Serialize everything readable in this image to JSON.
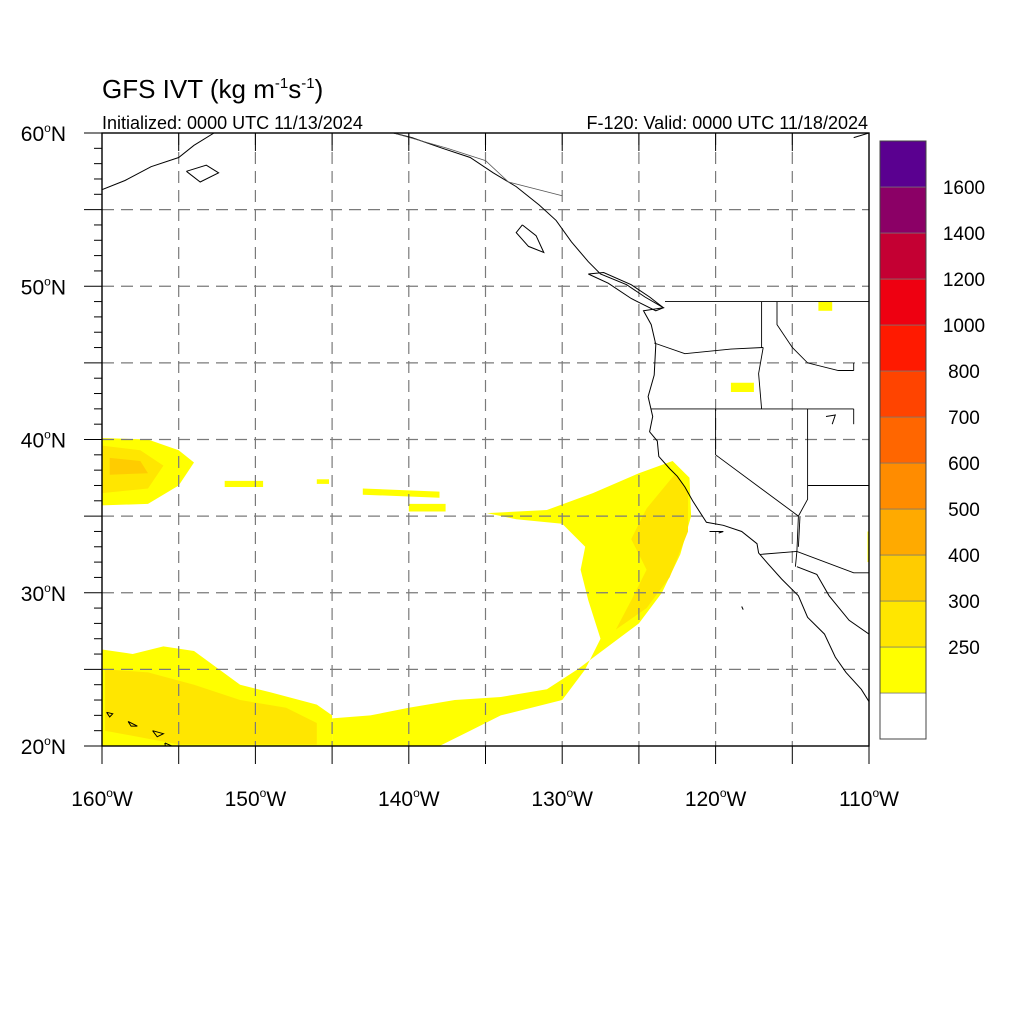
{
  "title_main": "GFS IVT (kg m",
  "title_sup1": "-1",
  "title_s": "s",
  "title_sup2": "-1",
  "title_close": ")",
  "initialized": "Initialized: 0000 UTC 11/13/2024",
  "valid": "F-120: Valid: 0000 UTC 11/18/2024",
  "lat_labels": [
    {
      "value": 60,
      "label": "60",
      "suffix": "N"
    },
    {
      "value": 50,
      "label": "50",
      "suffix": "N"
    },
    {
      "value": 40,
      "label": "40",
      "suffix": "N"
    },
    {
      "value": 30,
      "label": "30",
      "suffix": "N"
    },
    {
      "value": 20,
      "label": "20",
      "suffix": "N"
    }
  ],
  "lon_labels": [
    {
      "value": -160,
      "label": "160",
      "suffix": "W"
    },
    {
      "value": -150,
      "label": "150",
      "suffix": "W"
    },
    {
      "value": -140,
      "label": "140",
      "suffix": "W"
    },
    {
      "value": -130,
      "label": "130",
      "suffix": "W"
    },
    {
      "value": -120,
      "label": "120",
      "suffix": "W"
    },
    {
      "value": -110,
      "label": "110",
      "suffix": "W"
    }
  ],
  "degree_symbol": "o",
  "map_extent": {
    "lon_min": -160,
    "lon_max": -110,
    "lat_min": 20,
    "lat_max": 60
  },
  "colorbar": {
    "levels": [
      {
        "label": "",
        "color": "#ffffff"
      },
      {
        "label": "250",
        "color": "#ffff00"
      },
      {
        "label": "300",
        "color": "#ffe600"
      },
      {
        "label": "400",
        "color": "#ffcc00"
      },
      {
        "label": "500",
        "color": "#ffaa00"
      },
      {
        "label": "600",
        "color": "#ff8c00"
      },
      {
        "label": "700",
        "color": "#ff6600"
      },
      {
        "label": "800",
        "color": "#ff4400"
      },
      {
        "label": "1000",
        "color": "#ff1a00"
      },
      {
        "label": "1200",
        "color": "#ee0011"
      },
      {
        "label": "1400",
        "color": "#c40033"
      },
      {
        "label": "1600",
        "color": "#8b0066"
      },
      {
        "label": "",
        "color": "#5a0090"
      }
    ]
  },
  "ivt_regions": [
    {
      "name": "atmospheric-river-main",
      "color": "#ffff00",
      "poly": [
        [
          -134.9,
          35.2
        ],
        [
          -131,
          35.4
        ],
        [
          -128,
          36.5
        ],
        [
          -125,
          37.8
        ],
        [
          -122.8,
          38.6
        ],
        [
          -121.7,
          37.5
        ],
        [
          -121.6,
          35
        ],
        [
          -122.3,
          32.5
        ],
        [
          -123.5,
          30
        ],
        [
          -125,
          28
        ],
        [
          -127,
          26.5
        ],
        [
          -129,
          25
        ],
        [
          -131,
          23.7
        ],
        [
          -134,
          23.2
        ],
        [
          -137,
          23
        ],
        [
          -140,
          22.5
        ],
        [
          -142.5,
          22
        ],
        [
          -145,
          21.8
        ],
        [
          -145,
          20
        ],
        [
          -138,
          20
        ],
        [
          -136,
          21
        ],
        [
          -134,
          22
        ],
        [
          -132,
          22.5
        ],
        [
          -130,
          23
        ],
        [
          -128.5,
          25
        ],
        [
          -127.5,
          27
        ],
        [
          -128.3,
          29.5
        ],
        [
          -128.8,
          31.5
        ],
        [
          -128.5,
          33
        ],
        [
          -130,
          34.5
        ],
        [
          -133,
          34.8
        ]
      ]
    },
    {
      "name": "atmospheric-river-core",
      "color": "#ffe600",
      "poly": [
        [
          -124.5,
          35.5
        ],
        [
          -122.6,
          37.8
        ],
        [
          -121.8,
          36.5
        ],
        [
          -121.8,
          34
        ],
        [
          -123,
          31
        ],
        [
          -124.5,
          29
        ],
        [
          -126.5,
          27.6
        ],
        [
          -125.5,
          29.5
        ],
        [
          -124.5,
          31.5
        ],
        [
          -125.5,
          33.5
        ]
      ]
    },
    {
      "name": "north-pacific-blob",
      "color": "#ffff00",
      "poly": [
        [
          -160,
          40.1
        ],
        [
          -157,
          40
        ],
        [
          -155,
          39.3
        ],
        [
          -154,
          38.5
        ],
        [
          -155,
          37
        ],
        [
          -157,
          35.8
        ],
        [
          -160,
          35.7
        ]
      ]
    },
    {
      "name": "north-pacific-blob-core",
      "color": "#ffe600",
      "poly": [
        [
          -160,
          39.6
        ],
        [
          -157.5,
          39.3
        ],
        [
          -156,
          38.3
        ],
        [
          -157,
          36.8
        ],
        [
          -160,
          36.5
        ]
      ]
    },
    {
      "name": "north-pacific-blob-inner",
      "color": "#ffcc00",
      "poly": [
        [
          -159.5,
          38.8
        ],
        [
          -157.5,
          38.6
        ],
        [
          -157,
          37.8
        ],
        [
          -159.5,
          37.7
        ]
      ]
    },
    {
      "name": "hawaii-region",
      "color": "#ffff00",
      "poly": [
        [
          -160,
          26.3
        ],
        [
          -158,
          26
        ],
        [
          -156,
          26.5
        ],
        [
          -154,
          26.2
        ],
        [
          -151,
          24
        ],
        [
          -149,
          23.5
        ],
        [
          -146,
          22.7
        ],
        [
          -145,
          22
        ],
        [
          -145,
          20
        ],
        [
          -160,
          20
        ]
      ]
    },
    {
      "name": "hawaii-region-core",
      "color": "#ffe600",
      "poly": [
        [
          -159.8,
          25
        ],
        [
          -157,
          24.8
        ],
        [
          -154,
          24
        ],
        [
          -151,
          23
        ],
        [
          -148,
          22.5
        ],
        [
          -146,
          21.5
        ],
        [
          -146,
          20.1
        ],
        [
          -155,
          20.1
        ],
        [
          -159.8,
          21
        ]
      ]
    },
    {
      "name": "streak-1",
      "color": "#ffff00",
      "poly": [
        [
          -152,
          37.3
        ],
        [
          -149.5,
          37.3
        ],
        [
          -149.5,
          36.9
        ],
        [
          -152,
          36.9
        ]
      ]
    },
    {
      "name": "streak-2",
      "color": "#ffff00",
      "poly": [
        [
          -146,
          37.4
        ],
        [
          -145.2,
          37.4
        ],
        [
          -145.2,
          37.1
        ],
        [
          -146,
          37.1
        ]
      ]
    },
    {
      "name": "streak-3",
      "color": "#ffff00",
      "poly": [
        [
          -143,
          36.8
        ],
        [
          -138,
          36.6
        ],
        [
          -138,
          36.2
        ],
        [
          -143,
          36.4
        ]
      ]
    },
    {
      "name": "streak-4",
      "color": "#ffff00",
      "poly": [
        [
          -140,
          35.8
        ],
        [
          -137.6,
          35.8
        ],
        [
          -137.6,
          35.3
        ],
        [
          -140,
          35.3
        ]
      ]
    },
    {
      "name": "inland-idaho",
      "color": "#ffff00",
      "poly": [
        [
          -113.3,
          49
        ],
        [
          -112.4,
          49
        ],
        [
          -112.4,
          48.4
        ],
        [
          -113.3,
          48.4
        ]
      ]
    },
    {
      "name": "inland-oregon",
      "color": "#ffff00",
      "poly": [
        [
          -119,
          43.7
        ],
        [
          -117.5,
          43.7
        ],
        [
          -117.5,
          43.1
        ],
        [
          -119,
          43.1
        ]
      ]
    },
    {
      "name": "inland-mexico",
      "color": "#ffff00",
      "poly": [
        [
          -110.1,
          34
        ],
        [
          -110,
          34
        ],
        [
          -110,
          32
        ],
        [
          -110.1,
          32
        ]
      ]
    }
  ],
  "coastlines": [
    {
      "name": "na-west-coast",
      "pts": [
        [
          -110,
          22.9
        ],
        [
          -110.5,
          23.7
        ],
        [
          -111.5,
          24.8
        ],
        [
          -112.2,
          25.8
        ],
        [
          -112.9,
          27.3
        ],
        [
          -114,
          28.4
        ],
        [
          -114.6,
          29.8
        ],
        [
          -115.7,
          30.9
        ],
        [
          -116.6,
          31.9
        ],
        [
          -117.2,
          32.6
        ],
        [
          -117.3,
          33.2
        ],
        [
          -118.3,
          34
        ],
        [
          -119.5,
          34.4
        ],
        [
          -120.6,
          34.6
        ],
        [
          -121.5,
          36
        ],
        [
          -122,
          36.9
        ],
        [
          -122.5,
          37.6
        ],
        [
          -123,
          38.1
        ],
        [
          -123.7,
          38.9
        ],
        [
          -123.8,
          39.9
        ],
        [
          -124.3,
          40.5
        ],
        [
          -124.1,
          41.5
        ],
        [
          -124.4,
          42.8
        ],
        [
          -124,
          44.2
        ],
        [
          -123.9,
          46.2
        ],
        [
          -124.2,
          47.5
        ],
        [
          -124.7,
          48.4
        ],
        [
          -123.4,
          48.6
        ],
        [
          -124.6,
          49.3
        ],
        [
          -125.8,
          50.1
        ],
        [
          -127.5,
          50.8
        ],
        [
          -128.3,
          51.6
        ],
        [
          -129.4,
          52.9
        ],
        [
          -130.4,
          54.3
        ],
        [
          -131.5,
          55.3
        ],
        [
          -133,
          56.5
        ],
        [
          -134.5,
          57.4
        ],
        [
          -136,
          58.4
        ],
        [
          -137.8,
          59
        ],
        [
          -139.8,
          59.7
        ],
        [
          -141,
          60
        ]
      ]
    },
    {
      "name": "gulf-california-east",
      "pts": [
        [
          -114.7,
          31.7
        ],
        [
          -113.4,
          31.2
        ],
        [
          -112.6,
          29.8
        ],
        [
          -111.3,
          28.2
        ],
        [
          -110,
          27.3
        ]
      ]
    },
    {
      "name": "alaska-peninsula",
      "pts": [
        [
          -160,
          56.3
        ],
        [
          -158.5,
          56.9
        ],
        [
          -156.8,
          57.8
        ],
        [
          -155,
          58.4
        ],
        [
          -154,
          59.2
        ],
        [
          -152.7,
          60
        ]
      ]
    },
    {
      "name": "kodiak",
      "pts": [
        [
          -154.5,
          57.5
        ],
        [
          -153.2,
          57.9
        ],
        [
          -152.4,
          57.4
        ],
        [
          -153.6,
          56.8
        ],
        [
          -154.5,
          57.5
        ]
      ]
    },
    {
      "name": "vancouver-is",
      "pts": [
        [
          -128.3,
          50.8
        ],
        [
          -127,
          50.2
        ],
        [
          -125.5,
          49.2
        ],
        [
          -123.9,
          48.4
        ],
        [
          -123.4,
          48.6
        ],
        [
          -124.3,
          49.3
        ],
        [
          -125.5,
          50.1
        ],
        [
          -127.3,
          50.9
        ],
        [
          -128.3,
          50.8
        ]
      ]
    },
    {
      "name": "haida-gwaii",
      "pts": [
        [
          -132.6,
          54
        ],
        [
          -131.7,
          53.3
        ],
        [
          -131.2,
          52.2
        ],
        [
          -132.2,
          52.6
        ],
        [
          -133,
          53.5
        ],
        [
          -132.6,
          54
        ]
      ]
    },
    {
      "name": "oahu",
      "pts": [
        [
          -158.3,
          21.6
        ],
        [
          -157.7,
          21.3
        ],
        [
          -158.1,
          21.3
        ],
        [
          -158.3,
          21.6
        ]
      ]
    },
    {
      "name": "kauai",
      "pts": [
        [
          -159.7,
          22.2
        ],
        [
          -159.3,
          22.1
        ],
        [
          -159.5,
          21.9
        ],
        [
          -159.7,
          22.2
        ]
      ]
    },
    {
      "name": "maui",
      "pts": [
        [
          -156.7,
          21
        ],
        [
          -156,
          20.8
        ],
        [
          -156.4,
          20.6
        ],
        [
          -156.7,
          21
        ]
      ]
    },
    {
      "name": "big-island",
      "pts": [
        [
          -155.9,
          20.2
        ],
        [
          -155,
          19.8
        ],
        [
          -155.8,
          19.5
        ],
        [
          -155.9,
          20.2
        ]
      ]
    },
    {
      "name": "great-salt-lake",
      "pts": [
        [
          -112.8,
          41.5
        ],
        [
          -112.2,
          41.6
        ],
        [
          -112.4,
          41
        ]
      ]
    },
    {
      "name": "channel-islands",
      "pts": [
        [
          -120.4,
          34
        ],
        [
          -119.5,
          34
        ],
        [
          -119.8,
          33.9
        ]
      ]
    },
    {
      "name": "guadalupe-is",
      "pts": [
        [
          -118.3,
          29.1
        ],
        [
          -118.2,
          28.9
        ]
      ]
    },
    {
      "name": "hudson-tip",
      "pts": [
        [
          -111,
          59.7
        ],
        [
          -110,
          60
        ]
      ]
    }
  ],
  "borders": [
    {
      "name": "us-canada-border",
      "pts": [
        [
          -123.3,
          49
        ],
        [
          -110,
          49
        ]
      ]
    },
    {
      "name": "alaska-canada-border",
      "pts": [
        [
          -141,
          60
        ],
        [
          -137.5,
          59
        ],
        [
          -135,
          58.2
        ],
        [
          -133.5,
          56.8
        ],
        [
          -130,
          55.9
        ]
      ]
    },
    {
      "name": "wa-or-border",
      "pts": [
        [
          -124,
          46.3
        ],
        [
          -122,
          45.6
        ],
        [
          -119,
          45.9
        ],
        [
          -116.9,
          46
        ]
      ]
    },
    {
      "name": "or-ca-border",
      "pts": [
        [
          -124.2,
          42
        ],
        [
          -120,
          42
        ],
        [
          -117,
          42
        ],
        [
          -111,
          42
        ]
      ]
    },
    {
      "name": "ca-nv-border",
      "pts": [
        [
          -120,
          42
        ],
        [
          -120,
          39
        ],
        [
          -114.6,
          35
        ]
      ]
    },
    {
      "name": "nv-ut-border",
      "pts": [
        [
          -114,
          42
        ],
        [
          -114,
          37
        ]
      ]
    },
    {
      "name": "id-wa-border",
      "pts": [
        [
          -117,
          49
        ],
        [
          -117,
          46
        ]
      ]
    },
    {
      "name": "id-or-border",
      "pts": [
        [
          -116.9,
          46
        ],
        [
          -117.2,
          44.3
        ],
        [
          -117,
          42
        ]
      ]
    },
    {
      "name": "id-mt-border",
      "pts": [
        [
          -116,
          49
        ],
        [
          -116,
          47.5
        ],
        [
          -115,
          46
        ],
        [
          -114,
          45
        ],
        [
          -112,
          44.5
        ],
        [
          -111,
          44.5
        ]
      ]
    },
    {
      "name": "mt-wy-border",
      "pts": [
        [
          -111,
          45
        ],
        [
          -111,
          44.5
        ]
      ]
    },
    {
      "name": "wy-ut-border",
      "pts": [
        [
          -111,
          41
        ],
        [
          -111,
          42
        ]
      ]
    },
    {
      "name": "az-nv-border",
      "pts": [
        [
          -114.6,
          35
        ],
        [
          -114,
          36.1
        ],
        [
          -114,
          37
        ]
      ]
    },
    {
      "name": "ut-az-border",
      "pts": [
        [
          -114,
          37
        ],
        [
          -110,
          37
        ]
      ]
    },
    {
      "name": "az-ca-border",
      "pts": [
        [
          -114.6,
          35
        ],
        [
          -114.7,
          32.7
        ]
      ]
    },
    {
      "name": "us-mexico-border",
      "pts": [
        [
          -117.1,
          32.5
        ],
        [
          -114.7,
          32.7
        ],
        [
          -111,
          31.3
        ],
        [
          -110,
          31.3
        ]
      ]
    },
    {
      "name": "baja-sonora-border",
      "pts": [
        [
          -114.7,
          32.7
        ],
        [
          -114.8,
          31.7
        ]
      ]
    },
    {
      "name": "colorado-river-line",
      "pts": [
        [
          -114.6,
          33
        ],
        [
          -114.5,
          35
        ]
      ]
    }
  ]
}
